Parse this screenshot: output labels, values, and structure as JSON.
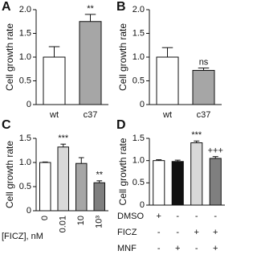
{
  "chart_data": [
    {
      "type": "bar",
      "panel": "A",
      "ylabel": "Cell growth rate",
      "categories": [
        "wt",
        "c37"
      ],
      "values": [
        1.0,
        1.75
      ],
      "errors": [
        0.22,
        0.15
      ],
      "colors": [
        "#ffffff",
        "#a6a6a6"
      ],
      "annotations": [
        null,
        "**"
      ],
      "ylim": [
        0,
        2.0
      ],
      "yticks": [
        0,
        0.5,
        {
          "value": 1.0,
          "label": "1.0"
        },
        1.5,
        {
          "value": 2.0,
          "label": "2.0"
        }
      ]
    },
    {
      "type": "bar",
      "panel": "B",
      "ylabel": "Cell growth rate",
      "categories": [
        "wt",
        "c37"
      ],
      "values": [
        1.0,
        0.72
      ],
      "errors": [
        0.2,
        0.05
      ],
      "colors": [
        "#ffffff",
        "#a6a6a6"
      ],
      "annotations": [
        null,
        "ns"
      ],
      "ylim": [
        0,
        2.0
      ],
      "yticks": [
        0,
        0.5,
        {
          "value": 1.0,
          "label": "1.0"
        },
        1.5,
        {
          "value": 2.0,
          "label": "2.0"
        }
      ]
    },
    {
      "type": "bar",
      "panel": "C",
      "ylabel": "Cell growth rate",
      "xlabel": "[FICZ], nM",
      "categories": [
        "0",
        "0.01",
        "10",
        "10³"
      ],
      "values": [
        1.0,
        1.32,
        0.98,
        0.58
      ],
      "errors": [
        0.01,
        0.06,
        0.12,
        0.04
      ],
      "colors": [
        "#ffffff",
        "#d9d9d9",
        "#a6a6a6",
        "#7f7f7f"
      ],
      "annotations": [
        null,
        "***",
        null,
        "**"
      ],
      "ylim": [
        0,
        1.5
      ],
      "yticks": [
        0,
        0.5,
        {
          "value": 1.0,
          "label": "1.0"
        },
        1.5
      ]
    },
    {
      "type": "bar",
      "panel": "D",
      "ylabel": "Cell growth rate",
      "values": [
        1.0,
        0.98,
        1.4,
        1.05
      ],
      "errors": [
        0.02,
        0.03,
        0.04,
        0.04
      ],
      "colors": [
        "#ffffff",
        "#111111",
        "#d9d9d9",
        "#7f7f7f"
      ],
      "annotations": [
        null,
        null,
        "***",
        "+++"
      ],
      "conditions": [
        {
          "name": "DMSO",
          "marks": [
            "+",
            "-",
            "-",
            "-"
          ]
        },
        {
          "name": "FICZ",
          "marks": [
            "-",
            "-",
            "+",
            "+"
          ]
        },
        {
          "name": "MNF",
          "marks": [
            "-",
            "+",
            "-",
            "+"
          ]
        }
      ],
      "ylim": [
        0,
        1.5
      ],
      "yticks": [
        0,
        0.5,
        {
          "value": 1.0,
          "label": "1.0"
        },
        1.5
      ]
    }
  ]
}
